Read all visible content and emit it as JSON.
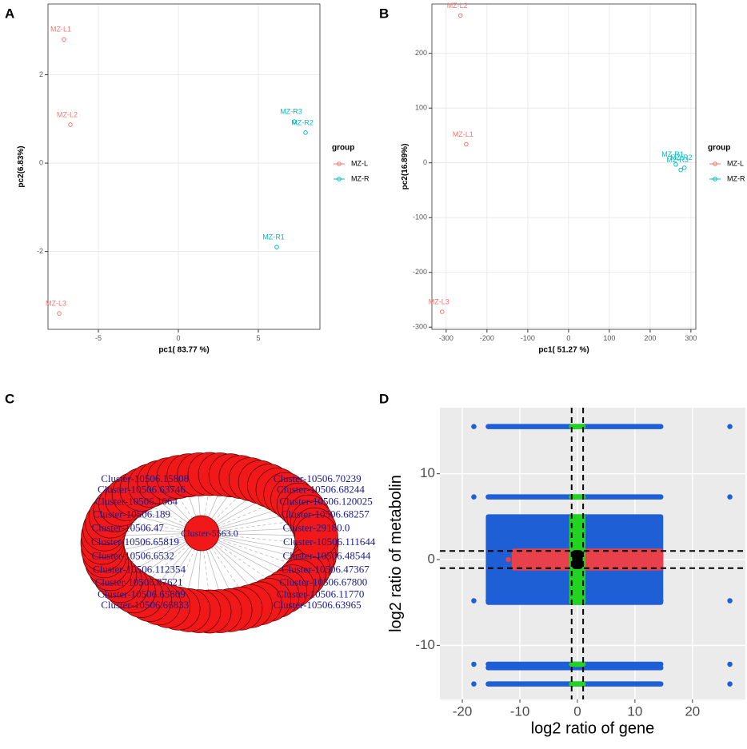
{
  "panels": [
    "A",
    "B",
    "C",
    "D"
  ],
  "chart_data": [
    {
      "type": "scatter",
      "xlabel": "pc1( 83.77 %)",
      "ylabel": "pc2(6.83%)",
      "xlim": [
        -8.15,
        8.85
      ],
      "ylim": [
        -3.76,
        3.6
      ],
      "xticks": [
        -5,
        0,
        5
      ],
      "yticks": [
        -2,
        0,
        2
      ],
      "grid": true,
      "legend_title": "group",
      "series": [
        {
          "name": "MZ-L",
          "color": "#f8766d",
          "labels": [
            "MZ-L1",
            "MZ-L2",
            "MZ-L3"
          ],
          "x": [
            -7.15,
            -6.75,
            -7.45
          ],
          "values": [
            2.8,
            0.87,
            -3.4
          ]
        },
        {
          "name": "MZ-R",
          "color": "#00bfc4",
          "labels": [
            "MZ-R1",
            "MZ-R2",
            "MZ-R3"
          ],
          "x": [
            6.15,
            7.95,
            7.25
          ],
          "values": [
            -1.9,
            0.69,
            0.94
          ]
        }
      ]
    },
    {
      "type": "scatter",
      "xlabel": "pc1( 51.27 %)",
      "ylabel": "pc2(16.89%)",
      "xlim": [
        -335,
        312
      ],
      "ylim": [
        -304,
        290
      ],
      "xticks": [
        -300,
        -200,
        -100,
        0,
        100,
        200,
        300
      ],
      "yticks": [
        -300,
        -200,
        -100,
        0,
        100,
        200
      ],
      "grid": true,
      "legend_title": "group",
      "series": [
        {
          "name": "MZ-L",
          "color": "#f8766d",
          "labels": [
            "MZ-L1",
            "MZ-L2",
            "MZ-L3"
          ],
          "x": [
            -251,
            -265,
            -310
          ],
          "values": [
            34,
            269,
            -272
          ]
        },
        {
          "name": "MZ-R",
          "color": "#00bfc4",
          "labels": [
            "MZ-R1",
            "MZ-R2",
            "MZ-R3"
          ],
          "x": [
            263,
            284,
            275
          ],
          "values": [
            -3,
            -9,
            -13
          ]
        }
      ]
    },
    {
      "type": "regions",
      "xlabel": "log2 ratio of gene",
      "ylabel": "log2 ratio of metabolin",
      "xlim": [
        -23.9,
        29.2
      ],
      "ylim": [
        -16.3,
        17.7
      ],
      "xticks": [
        -20,
        -10,
        0,
        10,
        20
      ],
      "yticks": [
        -10,
        0,
        10
      ],
      "grid": true,
      "vlines": [
        -1,
        1
      ],
      "hlines": [
        -1,
        1
      ],
      "series": [
        {
          "color": "#1f5fd6",
          "regions": [
            {
              "x": [
                -18,
                -18
              ],
              "y": [
                15.5,
                15.5
              ]
            },
            {
              "x": [
                -15.5,
                14.5
              ],
              "y": [
                15.5,
                15.5
              ]
            },
            {
              "x": [
                26.5,
                26.5
              ],
              "y": [
                15.5,
                15.5
              ]
            },
            {
              "x": [
                -18,
                -18
              ],
              "y": [
                7.3,
                7.3
              ]
            },
            {
              "x": [
                -15.5,
                14.5
              ],
              "y": [
                7.3,
                7.3
              ]
            },
            {
              "x": [
                26.5,
                26.5
              ],
              "y": [
                7.3,
                7.3
              ]
            },
            {
              "x": [
                -15.5,
                14.5
              ],
              "y": [
                -5,
                5
              ]
            },
            {
              "x": [
                -18,
                -18
              ],
              "y": [
                -4.8,
                -4.8
              ]
            },
            {
              "x": [
                -15.5,
                14.5
              ],
              "y": [
                -4.8,
                -4.8
              ]
            },
            {
              "x": [
                26.5,
                26.5
              ],
              "y": [
                -4.8,
                -4.8
              ]
            },
            {
              "x": [
                -15.5,
                14.5
              ],
              "y": [
                -12.2,
                -12.2
              ]
            },
            {
              "x": [
                -15.5,
                14.5
              ],
              "y": [
                -12.6,
                -12.6
              ]
            },
            {
              "x": [
                -18,
                -18
              ],
              "y": [
                -12.2,
                -12.2
              ]
            },
            {
              "x": [
                26.5,
                26.5
              ],
              "y": [
                -12.2,
                -12.2
              ]
            },
            {
              "x": [
                -18,
                -18
              ],
              "y": [
                -14.5,
                -14.5
              ]
            },
            {
              "x": [
                -15.5,
                14.5
              ],
              "y": [
                -14.5,
                -14.5
              ]
            },
            {
              "x": [
                26.5,
                26.5
              ],
              "y": [
                -14.5,
                -14.5
              ]
            }
          ]
        },
        {
          "color": "#e8414b",
          "regions": [
            {
              "x": [
                -11,
                14.5
              ],
              "y": [
                -1,
                1
              ]
            },
            {
              "x": [
                -12,
                -12
              ],
              "y": [
                0,
                0
              ]
            }
          ]
        },
        {
          "color": "#22d322",
          "regions": [
            {
              "x": [
                -1,
                1
              ],
              "y": [
                15.5,
                15.5
              ]
            },
            {
              "x": [
                -1,
                1
              ],
              "y": [
                7.3,
                7.3
              ]
            },
            {
              "x": [
                -1,
                1
              ],
              "y": [
                -5,
                5
              ]
            },
            {
              "x": [
                -1,
                1
              ],
              "y": [
                -4.8,
                -4.8
              ]
            },
            {
              "x": [
                -1,
                1
              ],
              "y": [
                -12.2,
                -12.2
              ]
            },
            {
              "x": [
                -1,
                1
              ],
              "y": [
                -14.5,
                -14.5
              ]
            }
          ]
        },
        {
          "color": "#000000",
          "regions": [
            {
              "x": [
                -0.5,
                0.5
              ],
              "y": [
                -0.8,
                0.8
              ]
            }
          ]
        }
      ]
    }
  ],
  "network": {
    "center": "Cluster-5563.0",
    "nodes": [
      "Cluster-10506.66833",
      "Cluster-10506.65809",
      "Cluster-10506.87621",
      "Cluster-10506.112354",
      "Cluster-10506.6532",
      "Cluster-10506.65819",
      "Cluster-10506.47",
      "Cluster-10506.189",
      "Cluster-10506.1064",
      "Cluster-10506.63746",
      "Cluster-10506.15808",
      "Cluster-10506.63965",
      "Cluster-10506.11770",
      "Cluster-10506.67800",
      "Cluster-10506.47367",
      "Cluster-10506.48544",
      "Cluster-10506.111644",
      "Cluster-29180.0",
      "Cluster-10506.68257",
      "Cluster-10506.120025",
      "Cluster-10506.68244",
      "Cluster-10506.70239"
    ]
  }
}
